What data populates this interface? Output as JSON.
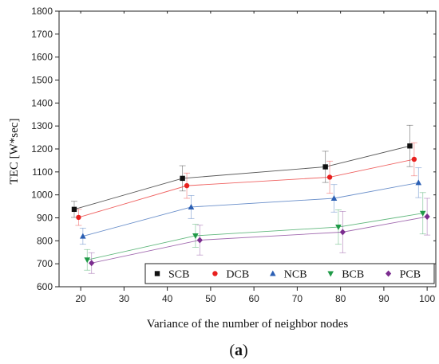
{
  "chart_data": {
    "type": "line",
    "title": "",
    "xlabel": "Variance of the number of neighbor nodes",
    "ylabel": "TEC [W*sec]",
    "xlim": [
      15,
      102
    ],
    "ylim": [
      600,
      1800
    ],
    "xticks": [
      20,
      30,
      40,
      50,
      60,
      70,
      80,
      90,
      100
    ],
    "yticks": [
      600,
      700,
      800,
      900,
      1000,
      1100,
      1200,
      1300,
      1400,
      1500,
      1600,
      1700,
      1800
    ],
    "grid": false,
    "legend_position": "bottom-right",
    "series": [
      {
        "name": "SCB",
        "color": "#111111",
        "marker": "square",
        "points": [
          {
            "x": 18.5,
            "y": 937,
            "err": 35
          },
          {
            "x": 43.5,
            "y": 1072,
            "err": 55
          },
          {
            "x": 76.5,
            "y": 1122,
            "err": 68
          },
          {
            "x": 96.0,
            "y": 1213,
            "err": 90
          }
        ]
      },
      {
        "name": "DCB",
        "color": "#e8201e",
        "marker": "circle",
        "points": [
          {
            "x": 19.5,
            "y": 902,
            "err": 35
          },
          {
            "x": 44.5,
            "y": 1040,
            "err": 55
          },
          {
            "x": 77.5,
            "y": 1077,
            "err": 70
          },
          {
            "x": 97.0,
            "y": 1155,
            "err": 72
          }
        ]
      },
      {
        "name": "NCB",
        "color": "#2b5fb4",
        "marker": "triangle-up",
        "points": [
          {
            "x": 20.5,
            "y": 820,
            "err": 35
          },
          {
            "x": 45.5,
            "y": 947,
            "err": 50
          },
          {
            "x": 78.5,
            "y": 985,
            "err": 60
          },
          {
            "x": 98.0,
            "y": 1053,
            "err": 65
          }
        ]
      },
      {
        "name": "BCB",
        "color": "#1f9a47",
        "marker": "triangle-down",
        "points": [
          {
            "x": 21.5,
            "y": 717,
            "err": 45
          },
          {
            "x": 46.5,
            "y": 822,
            "err": 50
          },
          {
            "x": 79.5,
            "y": 860,
            "err": 75
          },
          {
            "x": 99.0,
            "y": 920,
            "err": 90
          }
        ]
      },
      {
        "name": "PCB",
        "color": "#7b2c8f",
        "marker": "diamond",
        "points": [
          {
            "x": 22.5,
            "y": 703,
            "err": 45
          },
          {
            "x": 47.5,
            "y": 803,
            "err": 65
          },
          {
            "x": 80.5,
            "y": 838,
            "err": 90
          },
          {
            "x": 100.0,
            "y": 905,
            "err": 80
          }
        ]
      }
    ]
  },
  "caption": {
    "open": "(",
    "letter": "a",
    "close": ")"
  }
}
